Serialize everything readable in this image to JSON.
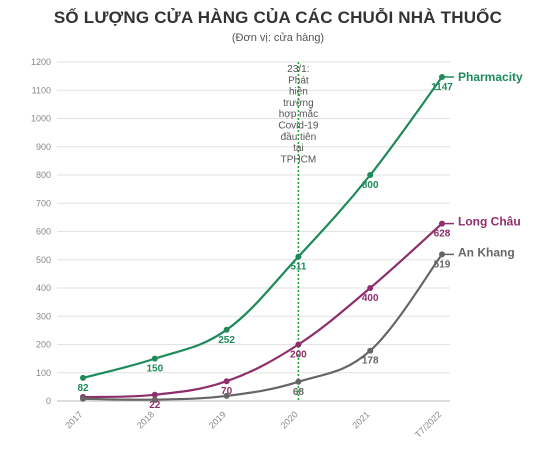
{
  "chart_data": {
    "type": "line",
    "title": "SỐ LƯỢNG CỬA HÀNG CỦA CÁC CHUỖI NHÀ THUỐC",
    "subtitle": "(Đơn vị: cửa hàng)",
    "categories": [
      "2017",
      "2018",
      "2019",
      "2020",
      "2021",
      "T7/2022"
    ],
    "ylim": [
      0,
      1200
    ],
    "yticks": [
      0,
      100,
      200,
      300,
      400,
      500,
      600,
      700,
      800,
      900,
      1000,
      1100,
      1200
    ],
    "grid": true,
    "series": [
      {
        "name": "Pharmacity",
        "color": "#1e8a5a",
        "values": [
          82,
          150,
          252,
          511,
          800,
          1147
        ],
        "labels": [
          "82",
          "150",
          "252",
          "511",
          "800",
          "1147"
        ]
      },
      {
        "name": "Long Châu",
        "color": "#8e2f6b",
        "values": [
          14,
          22,
          70,
          200,
          400,
          628
        ],
        "labels": [
          "",
          "22",
          "70",
          "200",
          "400",
          "628"
        ]
      },
      {
        "name": "An Khang",
        "color": "#666666",
        "values": [
          8,
          5,
          18,
          68,
          178,
          519
        ],
        "labels": [
          "",
          "",
          "",
          "68",
          "178",
          "519"
        ]
      }
    ],
    "annotation": {
      "category": "2020",
      "color": "#22aa33",
      "text_lines": [
        "23/1:",
        "Phát",
        "hiện",
        "trường",
        "hợp mắc",
        "Covid-19",
        "đầu tiên",
        "tại",
        "TPHCM"
      ]
    }
  }
}
